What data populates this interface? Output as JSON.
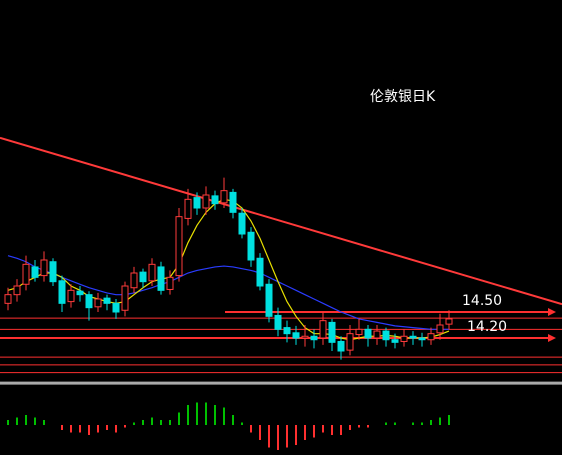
{
  "chart_data": {
    "type": "candlestick",
    "title": "伦敦银日K",
    "ylim": [
      13.6,
      18.1
    ],
    "up_color": "#ff3b3b",
    "down_color": "#00e0e0",
    "open": [
      14.6,
      14.7,
      14.82,
      15.02,
      14.92,
      15.08,
      14.86,
      14.62,
      14.74,
      14.7,
      14.56,
      14.66,
      14.6,
      14.52,
      14.78,
      14.96,
      14.86,
      15.02,
      14.76,
      14.92,
      15.58,
      15.82,
      15.7,
      15.84,
      15.76,
      15.88,
      15.64,
      15.42,
      15.12,
      14.82,
      14.46,
      14.32,
      14.26,
      14.2,
      14.22,
      14.2,
      14.38,
      14.16,
      14.06,
      14.24,
      14.3,
      14.2,
      14.28,
      14.18,
      14.16,
      14.22,
      14.2,
      14.18,
      14.26,
      14.36
    ],
    "high": [
      14.78,
      14.88,
      15.15,
      15.1,
      15.2,
      15.12,
      14.92,
      14.82,
      14.8,
      14.74,
      14.72,
      14.7,
      14.65,
      14.85,
      15.02,
      15.0,
      15.12,
      15.08,
      14.98,
      15.7,
      15.92,
      15.88,
      15.95,
      15.9,
      16.05,
      15.92,
      15.7,
      15.48,
      15.18,
      14.88,
      14.55,
      14.4,
      14.34,
      14.35,
      14.3,
      14.5,
      14.42,
      14.22,
      14.35,
      14.42,
      14.35,
      14.35,
      14.32,
      14.25,
      14.3,
      14.28,
      14.26,
      14.32,
      14.48,
      14.52
    ],
    "low": [
      14.52,
      14.62,
      14.75,
      14.85,
      14.85,
      14.8,
      14.5,
      14.55,
      14.62,
      14.4,
      14.5,
      14.52,
      14.42,
      14.45,
      14.72,
      14.78,
      14.8,
      14.7,
      14.7,
      14.85,
      15.5,
      15.62,
      15.62,
      15.68,
      15.7,
      15.58,
      15.35,
      15.02,
      14.75,
      14.38,
      14.22,
      14.15,
      14.12,
      14.1,
      14.08,
      14.12,
      14.05,
      13.95,
      14.0,
      14.18,
      14.1,
      14.12,
      14.1,
      14.08,
      14.1,
      14.12,
      14.1,
      14.12,
      14.18,
      14.3
    ],
    "close": [
      14.7,
      14.8,
      15.05,
      14.9,
      15.1,
      14.85,
      14.6,
      14.75,
      14.7,
      14.55,
      14.65,
      14.6,
      14.5,
      14.8,
      14.95,
      14.85,
      15.05,
      14.75,
      14.9,
      15.6,
      15.8,
      15.7,
      15.85,
      15.75,
      15.9,
      15.65,
      15.4,
      15.1,
      14.8,
      14.45,
      14.3,
      14.25,
      14.2,
      14.22,
      14.18,
      14.4,
      14.15,
      14.05,
      14.25,
      14.3,
      14.2,
      14.28,
      14.18,
      14.15,
      14.22,
      14.2,
      14.18,
      14.25,
      14.35,
      14.42
    ],
    "series": [
      {
        "color": "#2a3cff",
        "values": [
          15.15,
          15.12,
          15.08,
          15.02,
          14.98,
          14.94,
          14.9,
          14.86,
          14.82,
          14.78,
          14.75,
          14.72,
          14.7,
          14.7,
          14.72,
          14.75,
          14.78,
          14.82,
          14.85,
          14.9,
          14.95,
          14.98,
          15.0,
          15.02,
          15.03,
          15.02,
          15.0,
          14.98,
          14.95,
          14.9,
          14.85,
          14.8,
          14.75,
          14.7,
          14.65,
          14.6,
          14.55,
          14.5,
          14.46,
          14.42,
          14.4,
          14.38,
          14.36,
          14.34,
          14.33,
          14.32,
          14.31,
          14.3,
          14.3,
          14.3
        ]
      },
      {
        "color": "#e8e000",
        "values": [
          14.75,
          14.78,
          14.85,
          14.9,
          14.95,
          14.95,
          14.9,
          14.8,
          14.75,
          14.68,
          14.65,
          14.62,
          14.6,
          14.62,
          14.7,
          14.78,
          14.85,
          14.88,
          14.9,
          15.05,
          15.3,
          15.5,
          15.65,
          15.75,
          15.8,
          15.78,
          15.7,
          15.55,
          15.35,
          15.1,
          14.85,
          14.62,
          14.45,
          14.32,
          14.25,
          14.25,
          14.24,
          14.2,
          14.18,
          14.2,
          14.22,
          14.22,
          14.23,
          14.22,
          14.2,
          14.2,
          14.2,
          14.21,
          14.24,
          14.28
        ]
      }
    ],
    "macd_ylim": [
      -0.12,
      0.12
    ],
    "macd": [
      0.02,
      0.03,
      0.04,
      0.03,
      0.02,
      0.0,
      -0.02,
      -0.03,
      -0.03,
      -0.04,
      -0.03,
      -0.02,
      -0.03,
      -0.01,
      0.01,
      0.02,
      0.03,
      0.02,
      0.02,
      0.05,
      0.08,
      0.09,
      0.09,
      0.08,
      0.07,
      0.04,
      0.01,
      -0.03,
      -0.06,
      -0.09,
      -0.1,
      -0.09,
      -0.08,
      -0.06,
      -0.05,
      -0.03,
      -0.04,
      -0.04,
      -0.02,
      -0.01,
      -0.01,
      0.0,
      0.01,
      0.01,
      0.0,
      0.01,
      0.01,
      0.02,
      0.03,
      0.04
    ],
    "levels": [
      14.43,
      14.3,
      13.98,
      13.89,
      13.8
    ],
    "level_color": "#ff3030",
    "base_level": {
      "value": 13.68,
      "color": "#aaaaaa"
    },
    "trendline": {
      "from": 16.51,
      "to": 14.59,
      "color": "#ff3a3a"
    },
    "annotations": [
      {
        "text": "14.50",
        "value": 14.5
      },
      {
        "text": "14.20",
        "value": 14.2
      }
    ]
  }
}
